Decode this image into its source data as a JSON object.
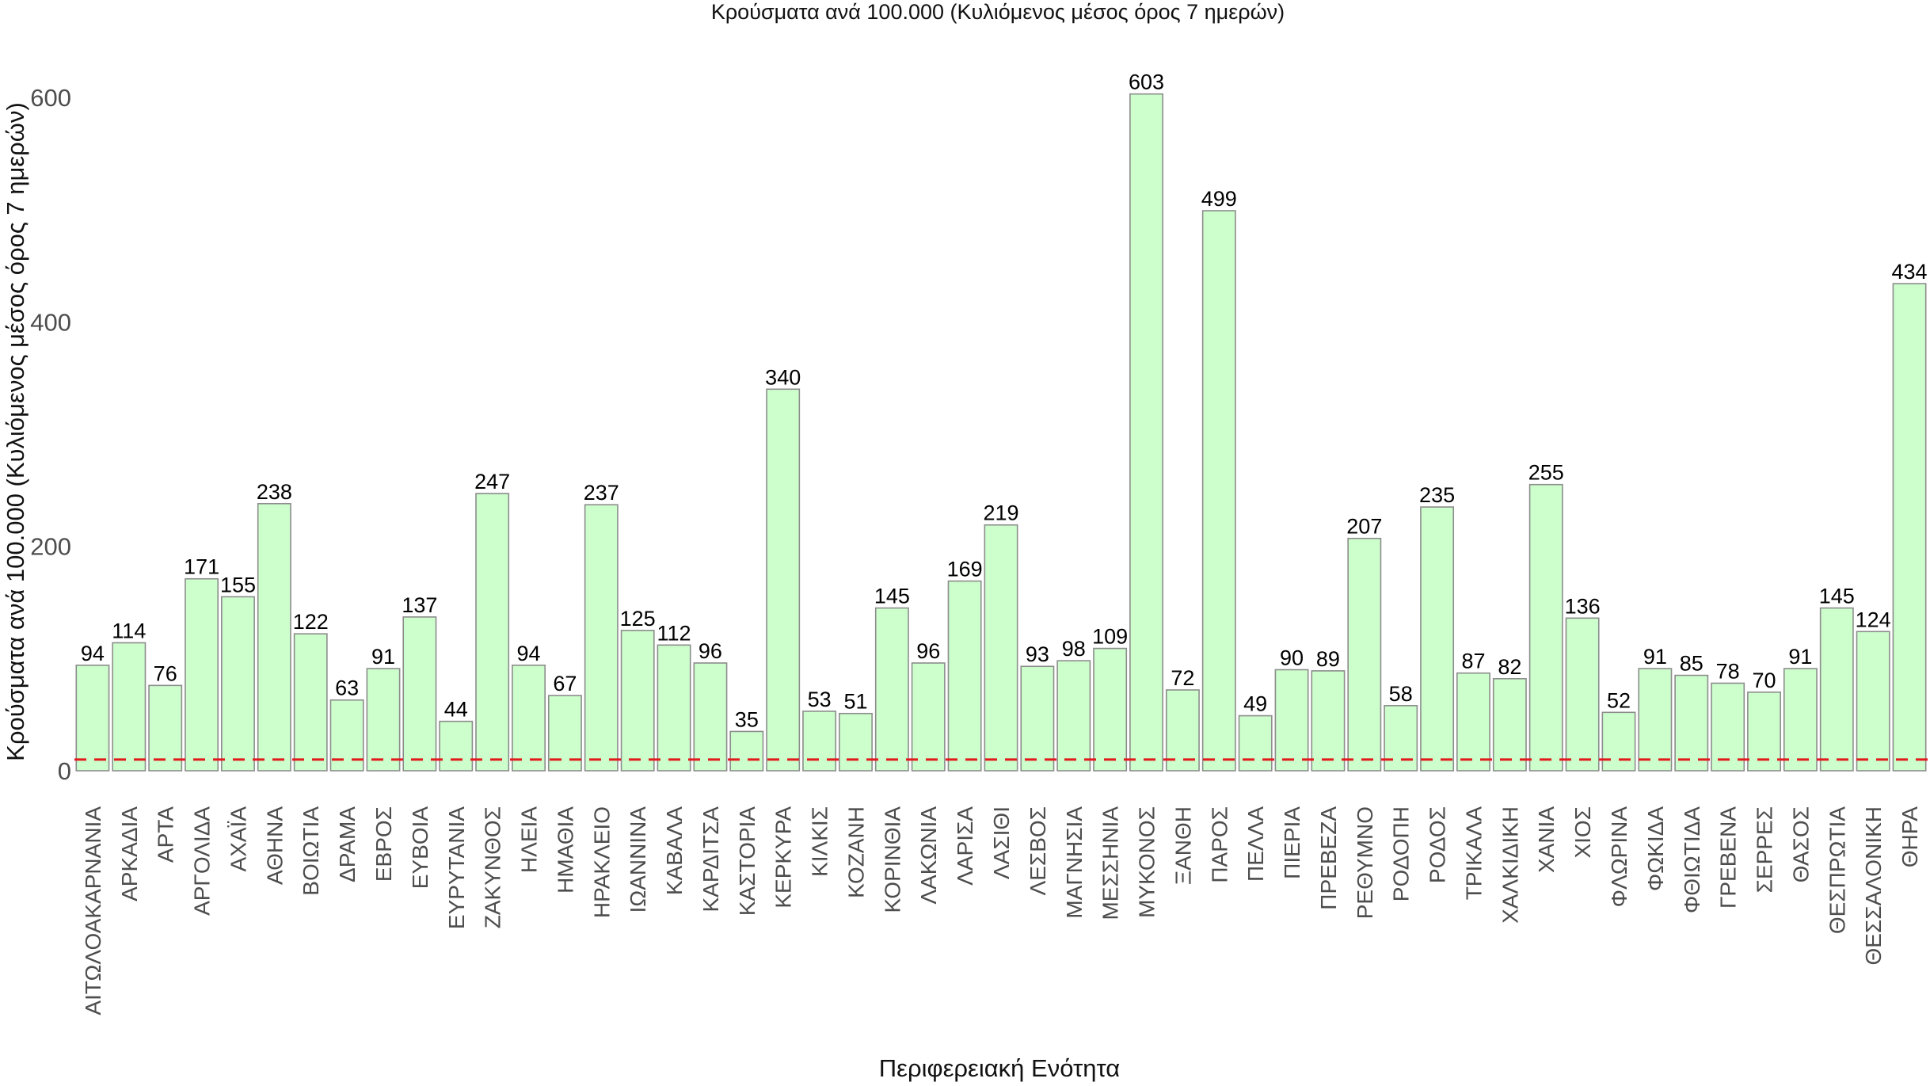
{
  "chart_data": {
    "type": "bar",
    "title": "Κρούσματα ανά 100.000 (Κυλιόμενος μέσος όρος 7 ημερών)",
    "xlabel": "Περιφερειακή Ενότητα",
    "ylabel": "Κρούσματα ανά 100.000 (Κυλιόμενος μέσος όρος 7 ημερών)",
    "ylim": [
      0,
      655
    ],
    "yticks": [
      0,
      200,
      400,
      600
    ],
    "reference_line": {
      "value": 10,
      "style": "dashed",
      "color": "#e31a1c"
    },
    "bar_color": "#ccffcc",
    "categories": [
      "ΑΙΤΩΛΟΑΚΑΡΝΑΝΙΑ",
      "ΑΡΚΑΔΙΑ",
      "ΑΡΤΑ",
      "ΑΡΓΟΛΙΔΑ",
      "ΑΧΑΪΑ",
      "ΑΘΗΝΑ",
      "ΒΟΙΩΤΙΑ",
      "ΔΡΑΜΑ",
      "ΕΒΡΟΣ",
      "ΕΥΒΟΙΑ",
      "ΕΥΡΥΤΑΝΙΑ",
      "ΖΑΚΥΝΘΟΣ",
      "ΗΛΕΙΑ",
      "ΗΜΑΘΙΑ",
      "ΗΡΑΚΛΕΙΟ",
      "ΙΩΑΝΝΙΝΑ",
      "ΚΑΒΑΛΑ",
      "ΚΑΡΔΙΤΣΑ",
      "ΚΑΣΤΟΡΙΑ",
      "ΚΕΡΚΥΡΑ",
      "ΚΙΛΚΙΣ",
      "ΚΟΖΑΝΗ",
      "ΚΟΡΙΝΘΙΑ",
      "ΛΑΚΩΝΙΑ",
      "ΛΑΡΙΣΑ",
      "ΛΑΣΙΘΙ",
      "ΛΕΣΒΟΣ",
      "ΜΑΓΝΗΣΙΑ",
      "ΜΕΣΣΗΝΙΑ",
      "ΜΥΚΟΝΟΣ",
      "ΞΑΝΘΗ",
      "ΠΑΡΟΣ",
      "ΠΕΛΛΑ",
      "ΠΙΕΡΙΑ",
      "ΠΡΕΒΕΖΑ",
      "ΡΕΘΥΜΝΟ",
      "ΡΟΔΟΠΗ",
      "ΡΟΔΟΣ",
      "ΤΡΙΚΑΛΑ",
      "ΧΑΛΚΙΔΙΚΗ",
      "ΧΑΝΙΑ",
      "ΧΙΟΣ",
      "ΦΛΩΡΙΝΑ",
      "ΦΩΚΙΔΑ",
      "ΦΘΙΩΤΙΔΑ",
      "ΓΡΕΒΕΝΑ",
      "ΣΕΡΡΕΣ",
      "ΘΑΣΟΣ",
      "ΘΕΣΠΡΩΤΙΑ",
      "ΘΕΣΣΑΛΟΝΙΚΗ",
      "ΘΗΡΑ"
    ],
    "values": [
      94,
      114,
      76,
      171,
      155,
      238,
      122,
      63,
      91,
      137,
      44,
      247,
      94,
      67,
      237,
      125,
      112,
      96,
      35,
      340,
      53,
      51,
      145,
      96,
      169,
      219,
      93,
      98,
      109,
      603,
      72,
      499,
      49,
      90,
      89,
      207,
      58,
      235,
      87,
      82,
      255,
      136,
      52,
      91,
      85,
      78,
      70,
      91,
      145,
      124,
      434
    ]
  }
}
